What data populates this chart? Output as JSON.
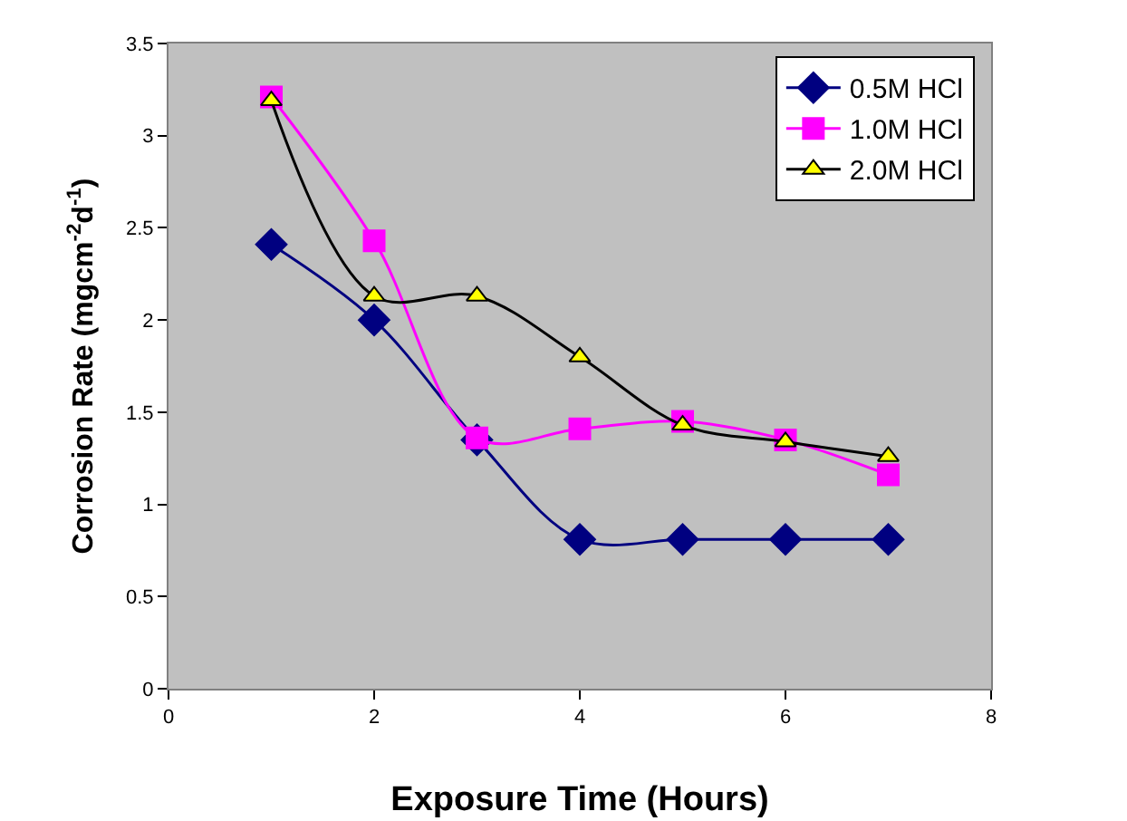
{
  "chart_data": {
    "type": "line",
    "xlabel": "Exposure Time (Hours)",
    "ylabel": "Corrosion Rate (mgcm$^{-2}$d$^{-1}$)",
    "x": [
      1,
      2,
      3,
      4,
      5,
      6,
      7
    ],
    "series": [
      {
        "name": "0.5M HCl",
        "color": "#000080",
        "marker": "diamond",
        "values": [
          2.41,
          2.0,
          1.35,
          0.81,
          0.81,
          0.81,
          0.81
        ]
      },
      {
        "name": "1.0M HCl",
        "color": "#ff00ff",
        "marker": "square",
        "values": [
          3.21,
          2.43,
          1.36,
          1.41,
          1.45,
          1.35,
          1.16
        ]
      },
      {
        "name": "2.0M HCl",
        "color": "#000000",
        "marker": "triangle",
        "colors": [
          "#ffff00",
          "#ffff00",
          "#ffff00",
          "#ffff00",
          "#ffff00",
          "#ffff00",
          "#ffff00"
        ],
        "values": [
          3.19,
          2.13,
          2.13,
          1.8,
          1.43,
          1.34,
          1.26
        ]
      }
    ],
    "xlim": [
      0,
      8
    ],
    "xticks": [
      0,
      2,
      4,
      6,
      8
    ],
    "ylim": [
      0,
      3.5
    ],
    "yticks": [
      0,
      0.5,
      1,
      1.5,
      2,
      2.5,
      3,
      3.5
    ],
    "grid": false,
    "legend": "top right"
  }
}
